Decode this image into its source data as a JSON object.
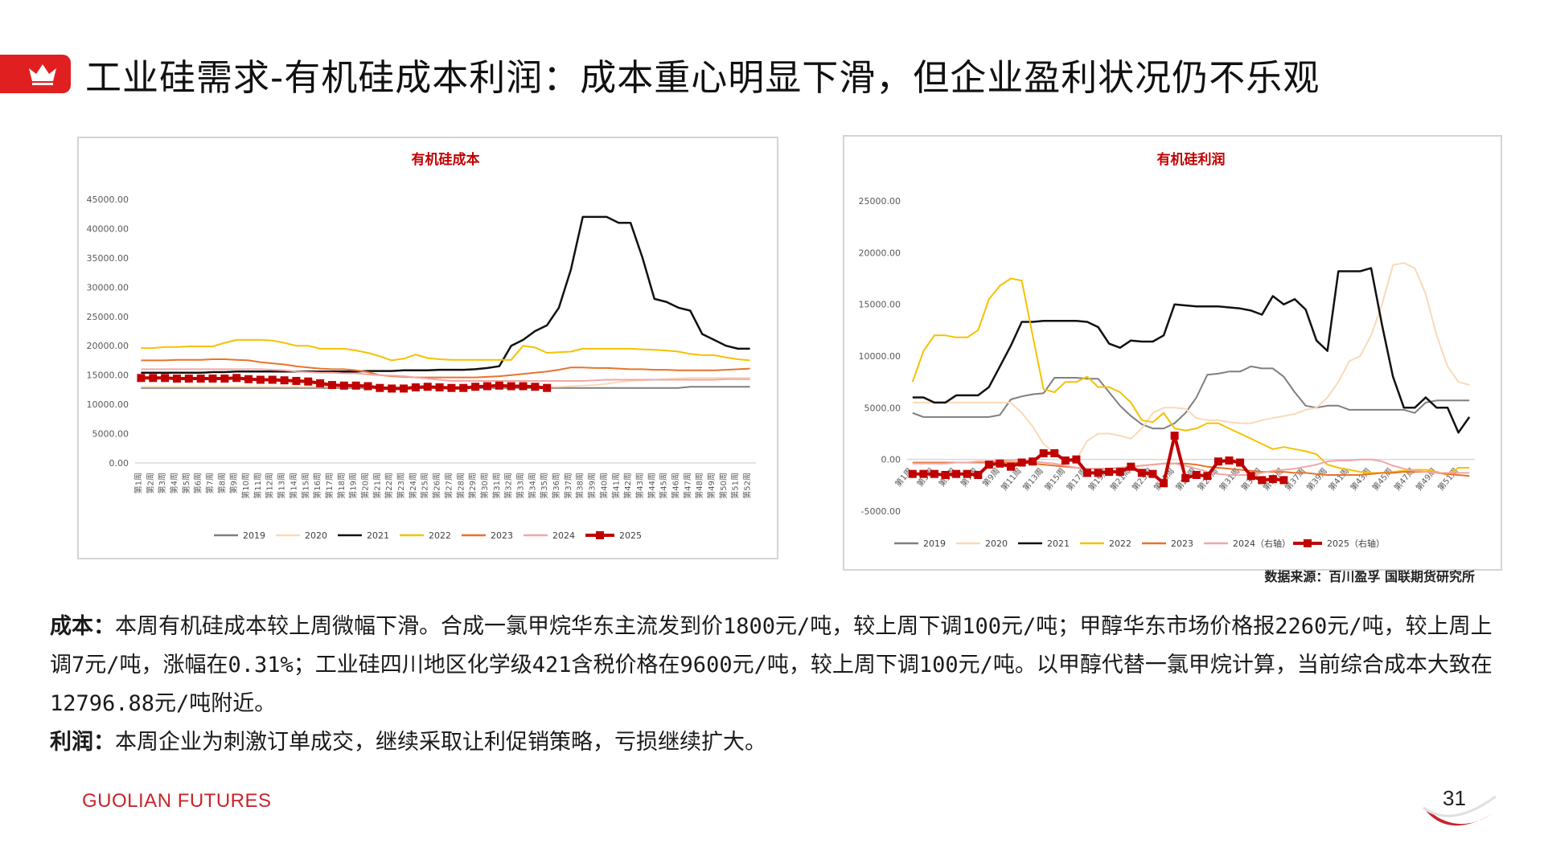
{
  "header": {
    "title": "工业硅需求-有机硅成本利润：成本重心明显下滑，但企业盈利状况仍不乐观",
    "crown_icon": "crown-icon",
    "accent_color": "#e02020"
  },
  "source_note": "数据来源：百川盈孚 国联期货研究所",
  "body": {
    "cost_label": "成本：",
    "cost_text": "本周有机硅成本较上周微幅下滑。合成一氯甲烷华东主流发到价1800元/吨，较上周下调100元/吨；甲醇华东市场价格报2260元/吨，较上周上调7元/吨，涨幅在0.31%；工业硅四川地区化学级421含税价格在9600元/吨，较上周下调100元/吨。以甲醇代替一氯甲烷计算，当前综合成本大致在12796.88元/吨附近。",
    "profit_label": "利润：",
    "profit_text": "本周企业为刺激订单成交，继续采取让利促销策略，亏损继续扩大。"
  },
  "footer": {
    "logo_text": "GUOLIAN FUTURES",
    "page_number": "31"
  },
  "chart_data": [
    {
      "type": "line",
      "title": "有机硅成本",
      "ylim": [
        0,
        45000
      ],
      "yticks": [
        "0.00",
        "5000.00",
        "10000.00",
        "15000.00",
        "20000.00",
        "25000.00",
        "30000.00",
        "35000.00",
        "40000.00",
        "45000.00"
      ],
      "x_prefix": "第",
      "x_suffix": "周",
      "n_weeks": 52,
      "grid": false,
      "legend": "bottom",
      "series": [
        {
          "name": "2019",
          "color": "#7f7f7f",
          "width": 2,
          "values": [
            12800,
            12800,
            12800,
            12800,
            12800,
            12800,
            12800,
            12800,
            12800,
            12800,
            12800,
            12800,
            12800,
            12800,
            12800,
            12800,
            12800,
            12800,
            12800,
            12800,
            12800,
            12800,
            12800,
            12800,
            12800,
            12800,
            12800,
            12800,
            12800,
            12800,
            12800,
            12800,
            12800,
            12800,
            12800,
            12800,
            12800,
            12800,
            12800,
            12800,
            12800,
            12800,
            12800,
            12800,
            12800,
            12800,
            13000,
            13000,
            13000,
            13000,
            13000,
            13000
          ]
        },
        {
          "name": "2020",
          "color": "#f9d9b8",
          "width": 2,
          "values": [
            13000,
            13000,
            13000,
            13000,
            13000,
            13000,
            13000,
            13000,
            13000,
            13000,
            13000,
            13000,
            13000,
            13000,
            13000,
            13000,
            13000,
            13000,
            13000,
            13000,
            13000,
            13000,
            13000,
            13000,
            13000,
            13000,
            13000,
            13000,
            13000,
            13000,
            13000,
            13000,
            13000,
            13000,
            13000,
            13000,
            13100,
            13200,
            13300,
            13500,
            13800,
            14000,
            14100,
            14200,
            14300,
            14400,
            14500,
            14500,
            14500,
            14500,
            14500,
            14500
          ]
        },
        {
          "name": "2021",
          "color": "#111111",
          "width": 2.5,
          "values": [
            15400,
            15400,
            15400,
            15400,
            15400,
            15400,
            15500,
            15500,
            15600,
            15600,
            15600,
            15600,
            15600,
            15600,
            15600,
            15600,
            15600,
            15600,
            15600,
            15700,
            15700,
            15700,
            15800,
            15800,
            15800,
            15900,
            15900,
            15900,
            16000,
            16200,
            16500,
            20000,
            21000,
            22500,
            23500,
            26500,
            33000,
            42000,
            42000,
            42000,
            41000,
            41000,
            35000,
            28000,
            27500,
            26500,
            26000,
            22000,
            21000,
            20000,
            19500,
            19500
          ]
        },
        {
          "name": "2022",
          "color": "#f5c100",
          "width": 2,
          "values": [
            19600,
            19600,
            19800,
            19800,
            19900,
            19900,
            19900,
            20500,
            21000,
            21000,
            21000,
            20900,
            20500,
            20000,
            20000,
            19500,
            19500,
            19500,
            19200,
            18800,
            18200,
            17500,
            17800,
            18500,
            17900,
            17700,
            17600,
            17600,
            17600,
            17600,
            17600,
            17600,
            20000,
            19700,
            18800,
            18900,
            19000,
            19500,
            19500,
            19500,
            19500,
            19500,
            19400,
            19300,
            19200,
            19000,
            18600,
            18400,
            18400,
            18000,
            17700,
            17500
          ]
        },
        {
          "name": "2023",
          "color": "#e8742a",
          "width": 2,
          "values": [
            17500,
            17500,
            17500,
            17600,
            17600,
            17600,
            17700,
            17700,
            17600,
            17500,
            17200,
            17000,
            16800,
            16500,
            16300,
            16100,
            16000,
            16000,
            15800,
            15500,
            15000,
            14800,
            14700,
            14600,
            14600,
            14600,
            14600,
            14600,
            14600,
            14700,
            14800,
            15000,
            15200,
            15400,
            15600,
            15900,
            16300,
            16300,
            16200,
            16200,
            16100,
            16000,
            16000,
            15900,
            15900,
            15800,
            15800,
            15800,
            15800,
            15900,
            16000,
            16100
          ]
        },
        {
          "name": "2024",
          "color": "#f2a6a6",
          "width": 2,
          "values": [
            16000,
            16000,
            16000,
            16000,
            16000,
            16000,
            16000,
            16000,
            16000,
            16000,
            16000,
            15900,
            15800,
            15600,
            15500,
            15400,
            15400,
            15300,
            15300,
            15100,
            15000,
            14900,
            14800,
            14600,
            14400,
            14200,
            14000,
            14000,
            14000,
            14000,
            14000,
            14000,
            14000,
            14000,
            14000,
            14000,
            14000,
            14000,
            14100,
            14200,
            14200,
            14200,
            14200,
            14200,
            14200,
            14200,
            14200,
            14200,
            14200,
            14300,
            14300,
            14300
          ]
        },
        {
          "name": "2025",
          "color": "#c00000",
          "width": 4,
          "marker": true,
          "values": [
            14500,
            14500,
            14500,
            14400,
            14400,
            14400,
            14400,
            14400,
            14500,
            14300,
            14200,
            14200,
            14100,
            14000,
            13900,
            13600,
            13300,
            13200,
            13200,
            13100,
            12800,
            12700,
            12700,
            12900,
            13000,
            12900,
            12800,
            12800,
            13000,
            13100,
            13200,
            13100,
            13100,
            13000,
            12800
          ]
        }
      ]
    },
    {
      "type": "line",
      "title": "有机硅利润",
      "ylim": [
        -5000,
        25000
      ],
      "yticks": [
        "-5000.00",
        "0.00",
        "5000.00",
        "10000.00",
        "15000.00",
        "20000.00",
        "25000.00"
      ],
      "x_prefix": "第",
      "x_suffix": "周",
      "n_weeks": 52,
      "grid": false,
      "legend": "bottom",
      "series": [
        {
          "name": "2019",
          "color": "#7f7f7f",
          "width": 2,
          "values": [
            4500,
            4100,
            4100,
            4100,
            4100,
            4100,
            4100,
            4100,
            4300,
            5800,
            6100,
            6300,
            6400,
            7900,
            7900,
            7900,
            7800,
            7800,
            6500,
            5200,
            4200,
            3400,
            3000,
            3000,
            3500,
            4500,
            6000,
            8200,
            8300,
            8500,
            8500,
            9000,
            8800,
            8800,
            8000,
            6500,
            5200,
            5000,
            5200,
            5200,
            4800,
            4800,
            4800,
            4800,
            4800,
            4800,
            4500,
            5500,
            5700,
            5700,
            5700,
            5700
          ]
        },
        {
          "name": "2020",
          "color": "#f9d9b8",
          "width": 2,
          "values": [
            5500,
            5500,
            5500,
            5500,
            5500,
            5500,
            5500,
            5500,
            5500,
            5500,
            4500,
            3200,
            1500,
            600,
            0,
            0,
            1800,
            2500,
            2500,
            2300,
            2000,
            3000,
            4500,
            5000,
            5000,
            4900,
            4000,
            3800,
            3800,
            3600,
            3500,
            3500,
            3800,
            4000,
            4200,
            4400,
            4800,
            5000,
            6000,
            7500,
            9500,
            10000,
            12000,
            15000,
            18800,
            19000,
            18500,
            16000,
            12000,
            9000,
            7500,
            7200
          ]
        },
        {
          "name": "2021",
          "color": "#111111",
          "width": 2.5,
          "values": [
            6000,
            6000,
            5500,
            5500,
            6200,
            6200,
            6200,
            7000,
            9000,
            11000,
            13300,
            13300,
            13400,
            13400,
            13400,
            13400,
            13300,
            12800,
            11200,
            10800,
            11500,
            11400,
            11400,
            12000,
            15000,
            14900,
            14800,
            14800,
            14800,
            14700,
            14600,
            14400,
            14000,
            15800,
            15000,
            15500,
            14500,
            11500,
            10500,
            18200,
            18200,
            18200,
            18500,
            13000,
            8000,
            5000,
            5000,
            6000,
            5000,
            5000,
            2600,
            4100
          ]
        },
        {
          "name": "2022",
          "color": "#f5c100",
          "width": 2,
          "values": [
            7500,
            10500,
            12000,
            12000,
            11800,
            11800,
            12500,
            15500,
            16800,
            17500,
            17300,
            12000,
            6800,
            6500,
            7500,
            7500,
            8000,
            7000,
            7000,
            6500,
            5500,
            3800,
            3600,
            4500,
            3000,
            2800,
            3000,
            3500,
            3500,
            3000,
            2500,
            2000,
            1500,
            1000,
            1200,
            1000,
            800,
            500,
            -500,
            -800,
            -1000,
            -1200,
            -1300,
            -1300,
            -1200,
            -1100,
            -1000,
            -1000,
            -1200,
            -1500,
            -800,
            -800
          ]
        },
        {
          "name": "2023",
          "color": "#e8742a",
          "width": 2,
          "values": [
            -300,
            -300,
            -300,
            -300,
            -300,
            -300,
            -300,
            -300,
            -300,
            -300,
            -300,
            -400,
            -500,
            -600,
            -700,
            -800,
            -900,
            -900,
            -900,
            -800,
            -700,
            -600,
            -500,
            -400,
            -400,
            -400,
            -500,
            -700,
            -800,
            -900,
            -1000,
            -1100,
            -1200,
            -1200,
            -1200,
            -1300,
            -1300,
            -1400,
            -1500,
            -1500,
            -1500,
            -1500,
            -1400,
            -1300,
            -1300,
            -1200,
            -1200,
            -1200,
            -1300,
            -1400,
            -1500,
            -1600
          ]
        },
        {
          "name": "2024（右轴）",
          "color": "#f2a6a6",
          "width": 2,
          "values": [
            -400,
            -400,
            -400,
            -400,
            -300,
            -300,
            -200,
            -200,
            -100,
            -100,
            0,
            -200,
            -300,
            -400,
            -600,
            -800,
            -900,
            -900,
            -900,
            -800,
            -700,
            -600,
            -500,
            -400,
            -400,
            -600,
            -900,
            -1200,
            -1400,
            -1500,
            -1500,
            -1500,
            -1300,
            -1100,
            -1000,
            -900,
            -700,
            -500,
            -200,
            -100,
            -100,
            0,
            0,
            -200,
            -600,
            -900,
            -1100,
            -1200,
            -1300,
            -1300,
            -1300,
            -1300
          ]
        },
        {
          "name": "2025（右轴）",
          "color": "#c00000",
          "width": 4,
          "marker": true,
          "values": [
            -1400,
            -1400,
            -1400,
            -1500,
            -1400,
            -1400,
            -1500,
            -500,
            -400,
            -700,
            -300,
            -200,
            600,
            600,
            -100,
            0,
            -1300,
            -1300,
            -1200,
            -1200,
            -700,
            -1300,
            -1400,
            -2300,
            2300,
            -1800,
            -1500,
            -1600,
            -200,
            -100,
            -300,
            -1600,
            -2000,
            -1900,
            -2000
          ]
        }
      ]
    }
  ]
}
